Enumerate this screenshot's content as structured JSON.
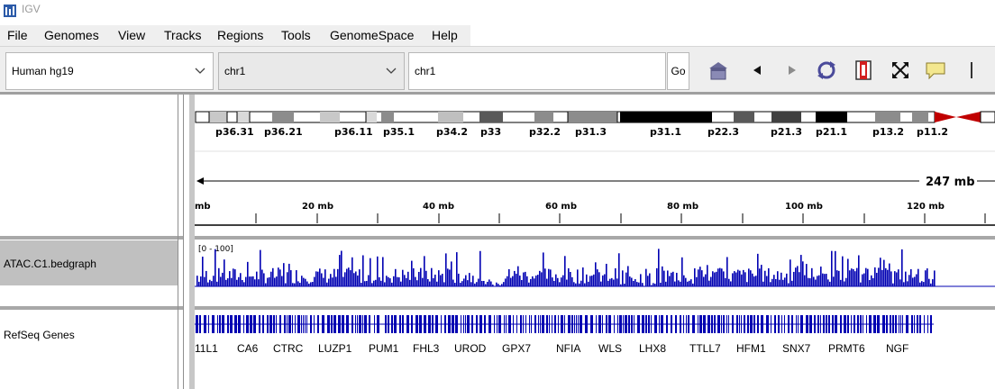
{
  "window": {
    "title": "IGV"
  },
  "menu": [
    "File",
    "Genomes",
    "View",
    "Tracks",
    "Regions",
    "Tools",
    "GenomeSpace",
    "Help"
  ],
  "toolbar": {
    "genome": "Human hg19",
    "chromosome": "chr1",
    "locus": "chr1",
    "go_label": "Go",
    "icons": [
      "home-icon",
      "back-icon",
      "forward-icon",
      "refresh-icon",
      "roi-icon",
      "fit-icon",
      "popup-text-icon",
      "divider"
    ]
  },
  "ideogram": {
    "bands": [
      "p36.31",
      "p36.21",
      "p36.11",
      "p35.1",
      "p34.2",
      "p33",
      "p32.2",
      "p31.3",
      "p31.1",
      "p22.3",
      "p21.3",
      "p21.1",
      "p13.2",
      "p11.2"
    ]
  },
  "ruler": {
    "span_label": "247 mb",
    "ticks": [
      "mb",
      "20 mb",
      "40 mb",
      "60 mb",
      "80 mb",
      "100 mb",
      "120 mb"
    ]
  },
  "tracks": {
    "atac": {
      "name": "ATAC.C1.bedgraph",
      "range": "[0 - 100]",
      "color": "#0000b2"
    },
    "genes": {
      "name": "RefSeq Genes",
      "color": "#0000b2"
    }
  },
  "genes": [
    "11L1",
    "CA6",
    "CTRC",
    "LUZP1",
    "PUM1",
    "FHL3",
    "UROD",
    "GPX7",
    "NFIA",
    "WLS",
    "LHX8",
    "TTLL7",
    "HFM1",
    "SNX7",
    "PRMT6",
    "NGF"
  ]
}
